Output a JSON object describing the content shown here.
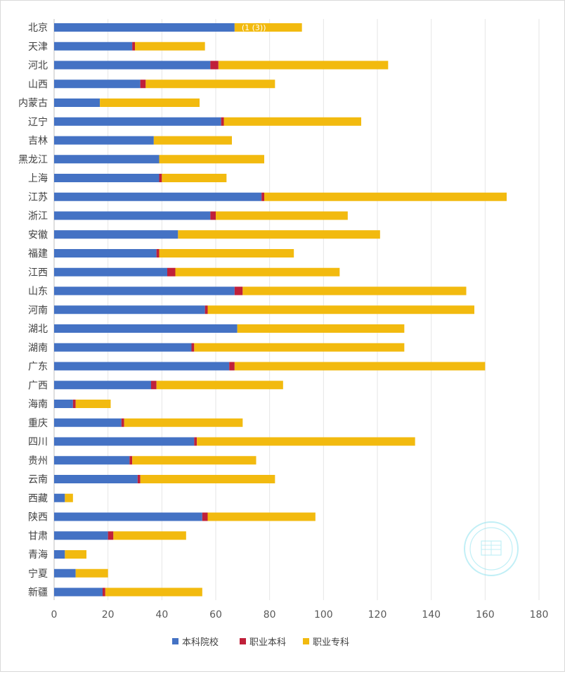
{
  "chart_data": {
    "type": "bar",
    "orientation": "horizontal",
    "stacked": true,
    "categories": [
      "北京",
      "天津",
      "河北",
      "山西",
      "内蒙古",
      "辽宁",
      "吉林",
      "黑龙江",
      "上海",
      "江苏",
      "浙江",
      "安徽",
      "福建",
      "江西",
      "山东",
      "河南",
      "湖北",
      "湖南",
      "广东",
      "广西",
      "海南",
      "重庆",
      "四川",
      "贵州",
      "云南",
      "西藏",
      "陕西",
      "甘肃",
      "青海",
      "宁夏",
      "新疆"
    ],
    "series": [
      {
        "name": "本科院校",
        "color": "#4472C4",
        "values": [
          67,
          29,
          58,
          32,
          17,
          62,
          37,
          39,
          39,
          77,
          58,
          46,
          38,
          42,
          67,
          56,
          68,
          51,
          65,
          36,
          7,
          25,
          52,
          28,
          31,
          4,
          55,
          20,
          4,
          8,
          18
        ]
      },
      {
        "name": "职业本科",
        "color": "#C0203A",
        "values": [
          0,
          1,
          3,
          2,
          0,
          1,
          0,
          0,
          1,
          1,
          2,
          0,
          1,
          3,
          3,
          1,
          0,
          1,
          2,
          2,
          1,
          1,
          1,
          1,
          1,
          0,
          2,
          2,
          0,
          0,
          1
        ]
      },
      {
        "name": "职业专科",
        "color": "#F2BA0F",
        "values": [
          25,
          26,
          63,
          48,
          37,
          51,
          29,
          39,
          24,
          90,
          49,
          75,
          50,
          61,
          83,
          99,
          62,
          78,
          93,
          47,
          13,
          44,
          81,
          46,
          50,
          3,
          40,
          27,
          8,
          12,
          36
        ]
      }
    ],
    "xlim": [
      0,
      180
    ],
    "xticks": [
      0,
      20,
      40,
      60,
      80,
      100,
      120,
      140,
      160,
      180
    ],
    "grid": true,
    "legend_position": "bottom",
    "annotation": "(1 (3))",
    "title": "",
    "xlabel": "",
    "ylabel": ""
  }
}
